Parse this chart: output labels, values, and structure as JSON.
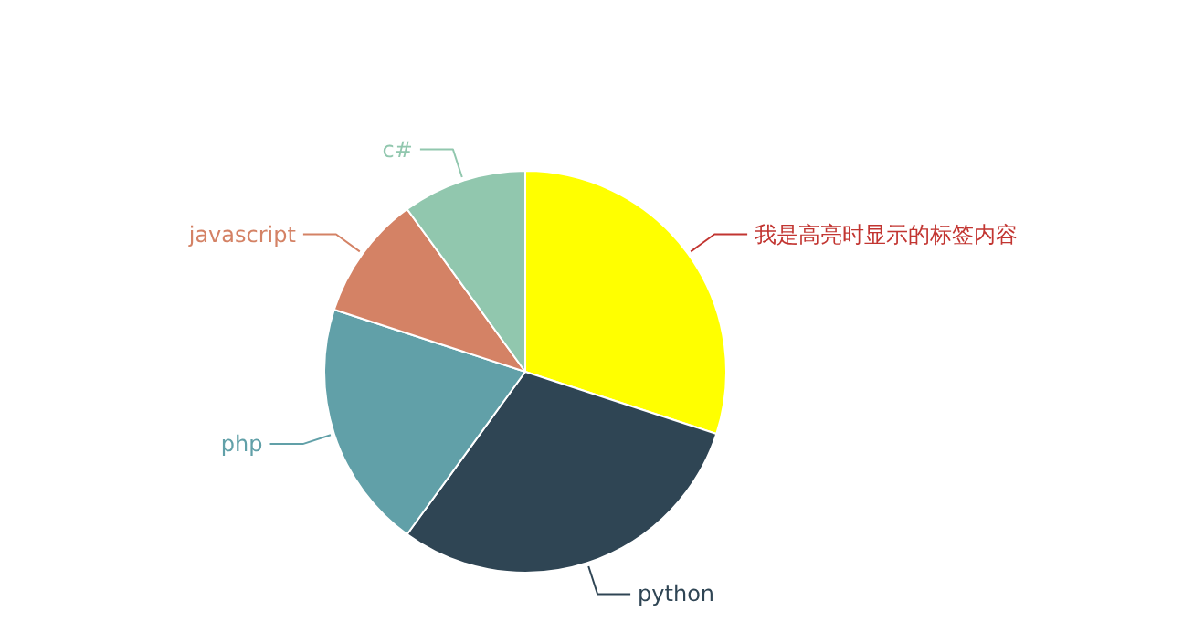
{
  "chart_data": {
    "type": "pie",
    "categories": [
      "我是高亮时显示的标签内容",
      "python",
      "php",
      "javascript",
      "c#"
    ],
    "values": [
      30,
      30,
      20,
      10,
      10
    ],
    "colors": [
      "#ffff00",
      "#2f4554",
      "#61a0a8",
      "#d48265",
      "#91c7ae"
    ]
  }
}
